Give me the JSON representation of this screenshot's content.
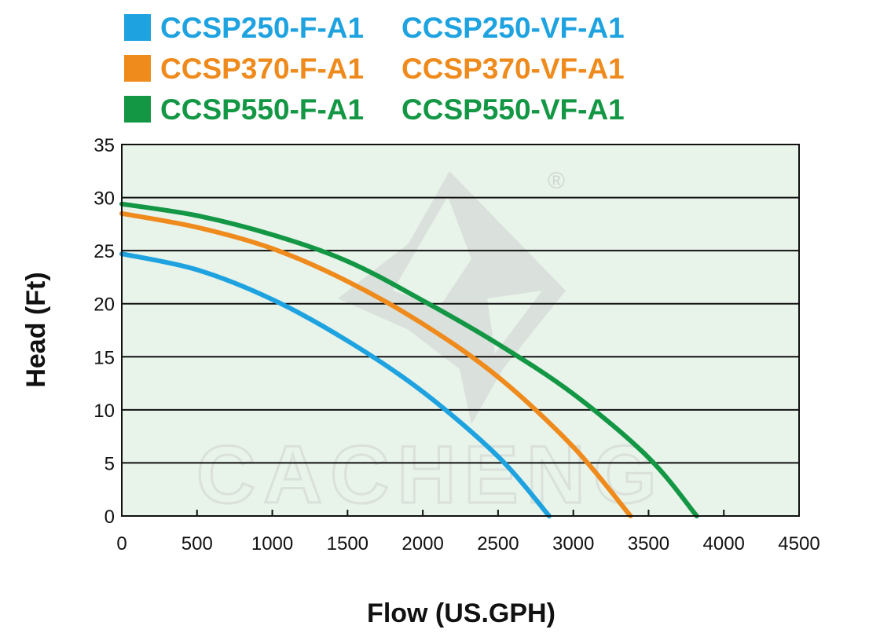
{
  "chart_data": {
    "type": "line",
    "xlabel": "Flow (US.GPH)",
    "ylabel": "Head (Ft)",
    "xlim": [
      0,
      4500
    ],
    "ylim": [
      0,
      35
    ],
    "x_ticks": [
      0,
      500,
      1000,
      1500,
      2000,
      2500,
      3000,
      3500,
      4000,
      4500
    ],
    "y_ticks": [
      0,
      5,
      10,
      15,
      20,
      25,
      30,
      35
    ],
    "grid": "horizontal",
    "plot_background": "#e8f3ea",
    "legend_placement": "top",
    "watermark": "CACHENG",
    "registered_mark": "®",
    "legend": [
      {
        "color": "#1ea3e0",
        "labels": [
          "CCSP250-F-A1",
          "CCSP250-VF-A1"
        ]
      },
      {
        "color": "#ef8a1c",
        "labels": [
          "CCSP370-F-A1",
          "CCSP370-VF-A1"
        ]
      },
      {
        "color": "#139745",
        "labels": [
          "CCSP550-F-A1",
          "CCSP550-VF-A1"
        ]
      }
    ],
    "series": [
      {
        "name": "CCSP250-F-A1 / CCSP250-VF-A1",
        "color": "#1ea3e0",
        "points": [
          [
            0,
            24.7
          ],
          [
            500,
            23.2
          ],
          [
            1000,
            20.4
          ],
          [
            1500,
            16.5
          ],
          [
            2000,
            11.7
          ],
          [
            2500,
            5.6
          ],
          [
            2840,
            0
          ]
        ]
      },
      {
        "name": "CCSP370-F-A1 / CCSP370-VF-A1",
        "color": "#ef8a1c",
        "points": [
          [
            0,
            28.5
          ],
          [
            500,
            27.2
          ],
          [
            1000,
            25.2
          ],
          [
            1500,
            22.1
          ],
          [
            2000,
            18.1
          ],
          [
            2500,
            13.1
          ],
          [
            3000,
            6.5
          ],
          [
            3380,
            0
          ]
        ]
      },
      {
        "name": "CCSP550-F-A1 / CCSP550-VF-A1",
        "color": "#139745",
        "points": [
          [
            0,
            29.4
          ],
          [
            500,
            28.3
          ],
          [
            1000,
            26.5
          ],
          [
            1500,
            24.0
          ],
          [
            2000,
            20.3
          ],
          [
            2500,
            16.2
          ],
          [
            3000,
            11.5
          ],
          [
            3500,
            5.5
          ],
          [
            3820,
            0
          ]
        ]
      }
    ]
  }
}
